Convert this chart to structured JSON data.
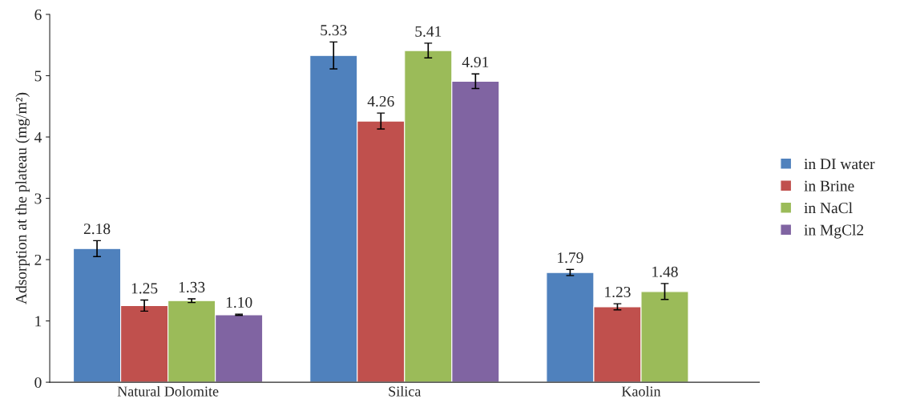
{
  "chart_data": {
    "type": "bar",
    "ylabel": "Adsorption at the plateau (mg/m²)",
    "categories": [
      "Natural Dolomite",
      "Silica",
      "Kaolin"
    ],
    "series": [
      {
        "name": "in DI water",
        "color": "#4f81bd",
        "values": [
          2.18,
          5.33,
          1.79
        ],
        "errors": [
          0.13,
          0.22,
          0.05
        ],
        "value_labels": [
          "2.18",
          "5.33",
          "1.79"
        ]
      },
      {
        "name": "in Brine",
        "color": "#c0504d",
        "values": [
          1.25,
          4.26,
          1.23
        ],
        "errors": [
          0.09,
          0.13,
          0.05
        ],
        "value_labels": [
          "1.25",
          "4.26",
          "1.23"
        ]
      },
      {
        "name": "in NaCl",
        "color": "#9bbb59",
        "values": [
          1.33,
          5.41,
          1.48
        ],
        "errors": [
          0.03,
          0.12,
          0.13
        ],
        "value_labels": [
          "1.33",
          "5.41",
          "1.48"
        ]
      },
      {
        "name": "in MgCl2",
        "color": "#8064a2",
        "values": [
          1.1,
          4.91,
          null
        ],
        "errors": [
          0.01,
          0.12,
          null
        ],
        "value_labels": [
          "1.10",
          "4.91",
          null
        ]
      }
    ],
    "ylim": [
      0,
      6
    ],
    "yticks": [
      0,
      1,
      2,
      3,
      4,
      5,
      6
    ],
    "grid": false,
    "legend": "right"
  }
}
